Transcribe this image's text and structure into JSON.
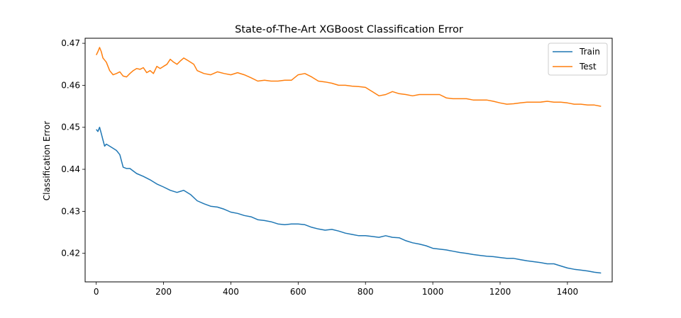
{
  "chart_data": {
    "type": "line",
    "title": "State-of-The-Art XGBoost Classification Error",
    "xlabel": "",
    "ylabel": "Classification Error",
    "xlim": [
      -33,
      1533
    ],
    "ylim": [
      0.4132,
      0.4712
    ],
    "x_ticks": [
      0,
      200,
      400,
      600,
      800,
      1000,
      1200,
      1400
    ],
    "y_ticks": [
      0.42,
      0.43,
      0.44,
      0.45,
      0.46,
      0.47
    ],
    "legend_position": "top-right",
    "grid": false,
    "series": [
      {
        "name": "Train",
        "color": "#1f77b4",
        "x": [
          0,
          5,
          10,
          15,
          20,
          25,
          30,
          40,
          50,
          60,
          70,
          80,
          90,
          100,
          120,
          140,
          160,
          180,
          200,
          220,
          240,
          260,
          280,
          300,
          320,
          340,
          360,
          380,
          400,
          420,
          440,
          460,
          480,
          500,
          520,
          540,
          560,
          580,
          600,
          620,
          640,
          660,
          680,
          700,
          720,
          740,
          760,
          780,
          800,
          820,
          840,
          860,
          880,
          900,
          920,
          940,
          960,
          980,
          1000,
          1020,
          1040,
          1060,
          1080,
          1100,
          1120,
          1140,
          1160,
          1180,
          1200,
          1220,
          1240,
          1260,
          1280,
          1300,
          1320,
          1340,
          1360,
          1380,
          1400,
          1420,
          1440,
          1460,
          1480,
          1500
        ],
        "y": [
          0.4495,
          0.449,
          0.45,
          0.4485,
          0.447,
          0.4455,
          0.446,
          0.4455,
          0.445,
          0.4445,
          0.4435,
          0.4405,
          0.4402,
          0.4402,
          0.439,
          0.4383,
          0.4375,
          0.4365,
          0.4358,
          0.435,
          0.4345,
          0.435,
          0.434,
          0.4325,
          0.4318,
          0.4312,
          0.431,
          0.4305,
          0.4298,
          0.4295,
          0.429,
          0.4287,
          0.428,
          0.4278,
          0.4275,
          0.427,
          0.4268,
          0.427,
          0.427,
          0.4268,
          0.4262,
          0.4258,
          0.4255,
          0.4257,
          0.4253,
          0.4248,
          0.4245,
          0.4242,
          0.4242,
          0.424,
          0.4238,
          0.4242,
          0.4238,
          0.4237,
          0.423,
          0.4225,
          0.4222,
          0.4218,
          0.4212,
          0.421,
          0.4208,
          0.4205,
          0.4202,
          0.42,
          0.4197,
          0.4195,
          0.4193,
          0.4192,
          0.419,
          0.4188,
          0.4188,
          0.4185,
          0.4182,
          0.418,
          0.4178,
          0.4175,
          0.4175,
          0.417,
          0.4165,
          0.4162,
          0.416,
          0.4158,
          0.4155,
          0.4153
        ]
      },
      {
        "name": "Test",
        "color": "#ff7f0e",
        "x": [
          0,
          5,
          10,
          15,
          20,
          25,
          30,
          40,
          50,
          60,
          70,
          80,
          90,
          100,
          110,
          120,
          130,
          140,
          150,
          160,
          170,
          180,
          190,
          200,
          210,
          220,
          230,
          240,
          250,
          260,
          270,
          280,
          290,
          300,
          320,
          340,
          360,
          380,
          400,
          420,
          440,
          460,
          480,
          500,
          520,
          540,
          560,
          580,
          600,
          620,
          640,
          660,
          680,
          700,
          720,
          740,
          760,
          780,
          800,
          820,
          840,
          860,
          880,
          900,
          920,
          940,
          960,
          980,
          1000,
          1020,
          1040,
          1060,
          1080,
          1100,
          1120,
          1140,
          1160,
          1180,
          1200,
          1220,
          1240,
          1260,
          1280,
          1300,
          1320,
          1340,
          1360,
          1380,
          1400,
          1420,
          1440,
          1460,
          1480,
          1500
        ],
        "y": [
          0.4672,
          0.468,
          0.469,
          0.468,
          0.4665,
          0.466,
          0.4655,
          0.4635,
          0.4625,
          0.4628,
          0.4632,
          0.4622,
          0.462,
          0.4628,
          0.4635,
          0.464,
          0.4638,
          0.4642,
          0.463,
          0.4635,
          0.4628,
          0.4645,
          0.464,
          0.4645,
          0.465,
          0.4662,
          0.4655,
          0.465,
          0.4658,
          0.4665,
          0.466,
          0.4655,
          0.465,
          0.4635,
          0.4628,
          0.4625,
          0.4632,
          0.4628,
          0.4625,
          0.463,
          0.4625,
          0.4618,
          0.461,
          0.4612,
          0.461,
          0.461,
          0.4612,
          0.4612,
          0.4625,
          0.4628,
          0.462,
          0.461,
          0.4608,
          0.4605,
          0.46,
          0.46,
          0.4598,
          0.4597,
          0.4595,
          0.4585,
          0.4575,
          0.4578,
          0.4585,
          0.458,
          0.4578,
          0.4575,
          0.4578,
          0.4578,
          0.4578,
          0.4578,
          0.457,
          0.4568,
          0.4568,
          0.4568,
          0.4565,
          0.4565,
          0.4565,
          0.4562,
          0.4558,
          0.4555,
          0.4556,
          0.4558,
          0.456,
          0.456,
          0.456,
          0.4562,
          0.456,
          0.456,
          0.4558,
          0.4555,
          0.4555,
          0.4553,
          0.4553,
          0.455
        ]
      }
    ]
  }
}
